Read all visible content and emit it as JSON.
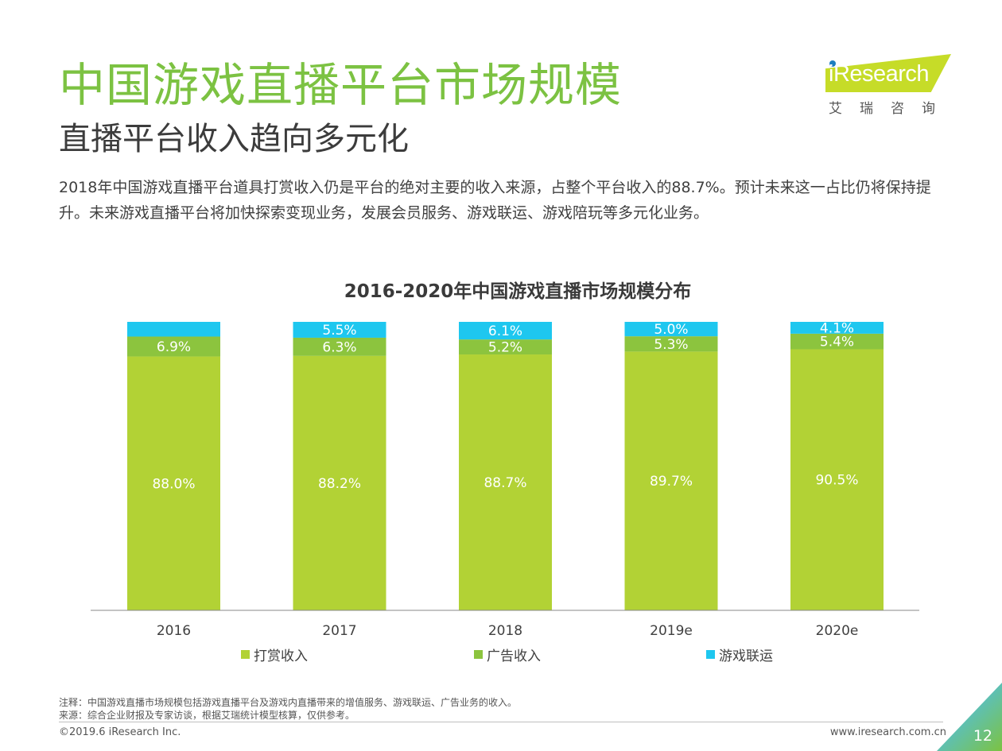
{
  "header": {
    "title": "中国游戏直播平台市场规模",
    "subtitle": "直播平台收入趋向多元化",
    "description": "2018年中国游戏直播平台道具打赏收入仍是平台的绝对主要的收入来源，占整个平台收入的88.7%。预计未来这一占比仍将保持提升。未来游戏直播平台将加快探索变现业务，发展会员服务、游戏联运、游戏陪玩等多元化业务。"
  },
  "logo": {
    "brand": "iResearch",
    "brand_cn": "艾瑞咨询",
    "color": "#c6dc28"
  },
  "chart_data": {
    "type": "bar",
    "stacked": true,
    "title": "2016-2020年中国游戏直播市场规模分布",
    "categories": [
      "2016",
      "2017",
      "2018",
      "2019e",
      "2020e"
    ],
    "series": [
      {
        "name": "打赏收入",
        "values": [
          88.0,
          88.2,
          88.7,
          89.7,
          90.5
        ],
        "labels": [
          "88.0%",
          "88.2%",
          "88.7%",
          "89.7%",
          "90.5%"
        ],
        "color": "#b2d235"
      },
      {
        "name": "广告收入",
        "values": [
          6.9,
          6.3,
          5.2,
          5.3,
          5.4
        ],
        "labels": [
          "6.9%",
          "6.3%",
          "5.2%",
          "5.3%",
          "5.4%"
        ],
        "color": "#8cc43e"
      },
      {
        "name": "游戏联运",
        "values": [
          5.1,
          5.5,
          6.1,
          5.0,
          4.1
        ],
        "labels": [
          "",
          "5.5%",
          "6.1%",
          "5.0%",
          "4.1%"
        ],
        "color": "#1ec7ef"
      }
    ],
    "ylim": [
      0,
      100
    ],
    "grid": false,
    "legend_position": "bottom"
  },
  "footer": {
    "note": "注释：中国游戏直播市场规模包括游戏直播平台及游戏内直播带来的增值服务、游戏联运、广告业务的收入。",
    "source": "来源：综合企业财报及专家访谈，根据艾瑞统计模型核算，仅供参考。",
    "copyright": "©2019.6 iResearch Inc.",
    "website": "www.iresearch.com.cn",
    "page_number": "12"
  }
}
